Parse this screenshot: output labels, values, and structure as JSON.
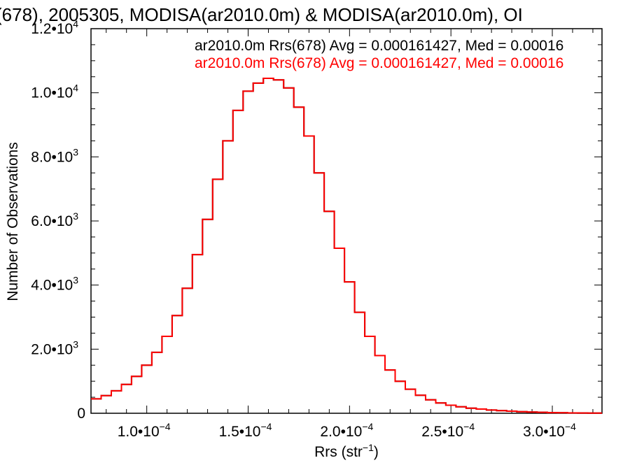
{
  "chart_data": {
    "type": "histogram",
    "title": "(678), 2005305, MODISA(ar2010.0m) & MODISA(ar2010.0m), OI",
    "xlabel": "Rrs (str⁻¹)",
    "ylabel": "Number of Observations",
    "xlim": [
      7.25e-05,
      0.0003245
    ],
    "ylim": [
      0,
      12000
    ],
    "x_ticks": [
      {
        "value": 0.0001,
        "mantissa": "1.0•10",
        "exp": "−4"
      },
      {
        "value": 0.00015,
        "mantissa": "1.5•10",
        "exp": "−4"
      },
      {
        "value": 0.0002,
        "mantissa": "2.0•10",
        "exp": "−4"
      },
      {
        "value": 0.00025,
        "mantissa": "2.5•10",
        "exp": "−4"
      },
      {
        "value": 0.0003,
        "mantissa": "3.0•10",
        "exp": "−4"
      }
    ],
    "y_ticks": [
      {
        "value": 0,
        "mantissa": "0",
        "exp": ""
      },
      {
        "value": 2000,
        "mantissa": "2.0•10",
        "exp": "3"
      },
      {
        "value": 4000,
        "mantissa": "4.0•10",
        "exp": "3"
      },
      {
        "value": 6000,
        "mantissa": "6.0•10",
        "exp": "3"
      },
      {
        "value": 8000,
        "mantissa": "8.0•10",
        "exp": "3"
      },
      {
        "value": 10000,
        "mantissa": "1.0•10",
        "exp": "4"
      },
      {
        "value": 12000,
        "mantissa": "1.2•10",
        "exp": "4"
      }
    ],
    "series": [
      {
        "name": "ar2010.0m Rrs(678) Avg = 0.000161427, Med = 0.00016",
        "color": "#000000"
      },
      {
        "name": "ar2010.0m Rrs(678) Avg = 0.000161427, Med = 0.00016",
        "color": "#ff0000"
      }
    ],
    "x": [
      7.25e-05,
      7.75e-05,
      8.25e-05,
      8.75e-05,
      9.25e-05,
      9.75e-05,
      0.0001025,
      0.0001075,
      0.0001125,
      0.0001175,
      0.0001225,
      0.0001275,
      0.0001325,
      0.0001375,
      0.0001425,
      0.0001475,
      0.0001525,
      0.0001575,
      0.0001625,
      0.0001675,
      0.0001725,
      0.0001775,
      0.0001825,
      0.0001875,
      0.0001925,
      0.0001975,
      0.0002025,
      0.0002075,
      0.0002125,
      0.0002175,
      0.0002225,
      0.0002275,
      0.0002325,
      0.0002375,
      0.0002425,
      0.0002475,
      0.0002525,
      0.0002575,
      0.0002625,
      0.0002675,
      0.0002725,
      0.0002775,
      0.0002825,
      0.0002875,
      0.0002925,
      0.0002975,
      0.0003025,
      0.0003075,
      0.0003125,
      0.0003175,
      0.0003225,
      0.0003245
    ],
    "y": [
      450,
      550,
      700,
      900,
      1150,
      1500,
      1900,
      2400,
      3050,
      3900,
      4950,
      6050,
      7300,
      8500,
      9450,
      10050,
      10300,
      10450,
      10400,
      10150,
      9550,
      8650,
      7500,
      6300,
      5150,
      4100,
      3150,
      2400,
      1800,
      1350,
      1000,
      750,
      560,
      420,
      320,
      250,
      200,
      160,
      130,
      100,
      80,
      65,
      50,
      40,
      30,
      20,
      15,
      10,
      8,
      5,
      5,
      5
    ]
  }
}
